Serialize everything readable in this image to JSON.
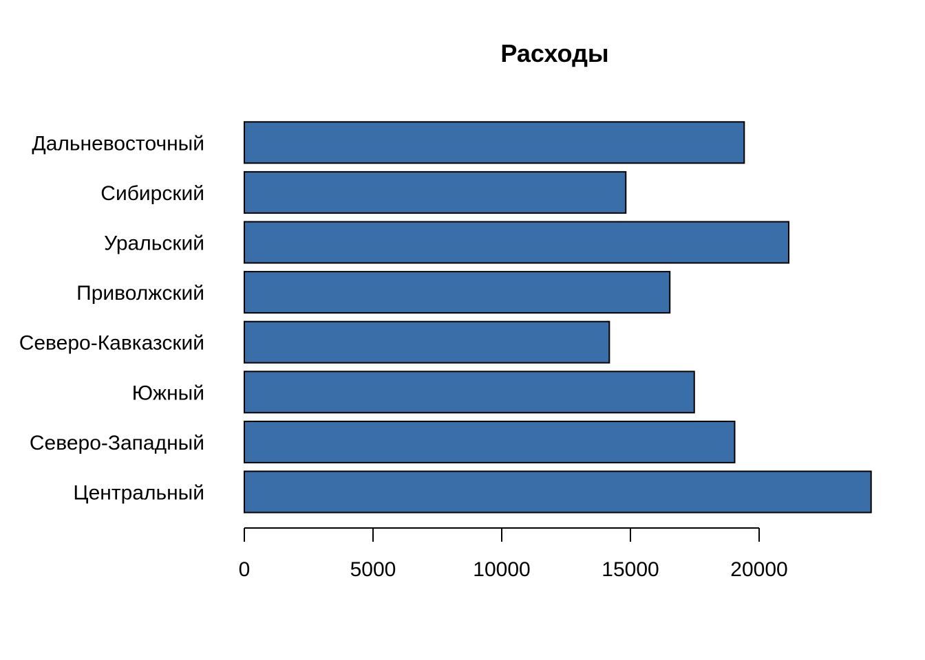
{
  "chart_data": {
    "type": "bar",
    "orientation": "horizontal",
    "title": "Расходы",
    "xlabel": "",
    "ylabel": "",
    "categories": [
      "Центральный",
      "Северо-Западный",
      "Южный",
      "Северо-Кавказский",
      "Приволжский",
      "Уральский",
      "Сибирский",
      "Дальневосточный"
    ],
    "values": [
      24350,
      19050,
      17480,
      14180,
      16530,
      21150,
      14820,
      19420
    ],
    "xlim": [
      0,
      25000
    ],
    "xticks": [
      0,
      5000,
      10000,
      15000,
      20000
    ],
    "xtick_labels": [
      "0",
      "5000",
      "10000",
      "15000",
      "20000"
    ],
    "bar_color": "#3A6EA8",
    "grid": false,
    "legend": "none"
  }
}
